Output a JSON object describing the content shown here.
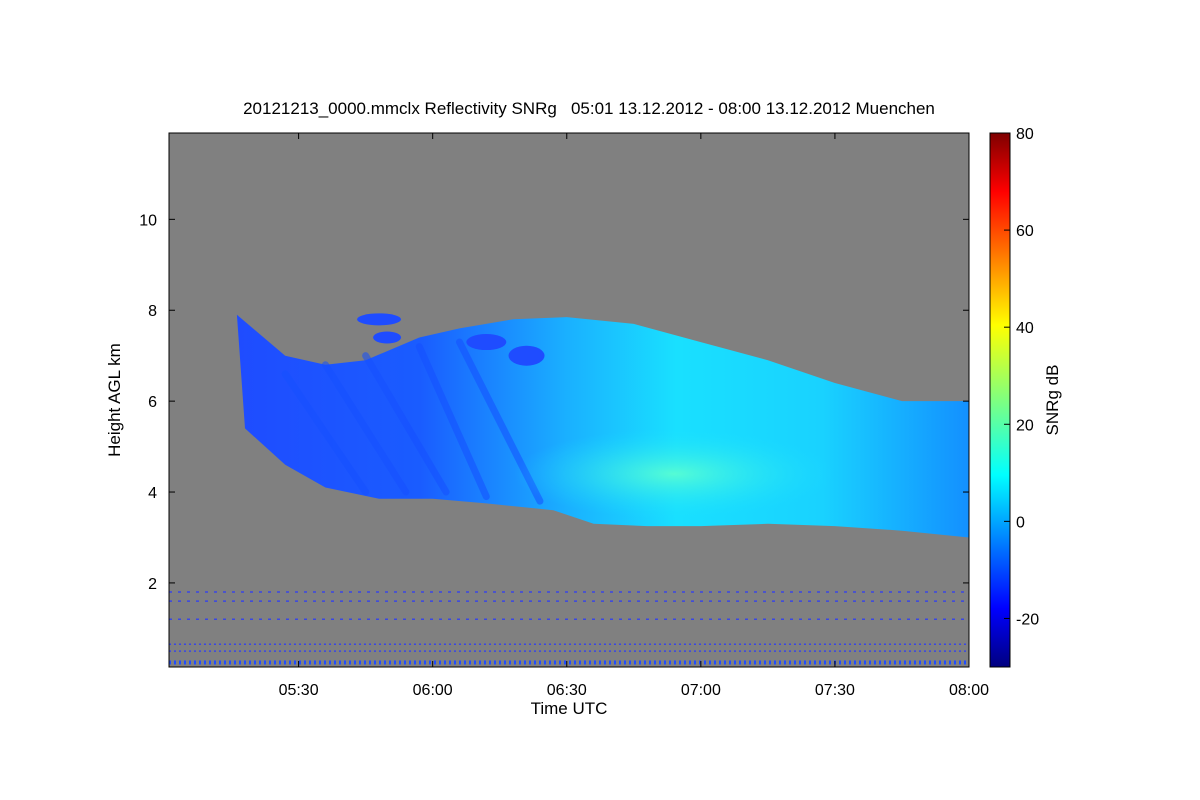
{
  "chart_data": {
    "type": "heatmap",
    "title": "20121213_0000.mmclx Reflectivity SNRg   05:01 13.12.2012 - 08:00 13.12.2012 Muenchen",
    "xlabel": "Time UTC",
    "ylabel": "Height AGL km",
    "x_unit": "UTC hour",
    "xlim": [
      5.0167,
      8.0
    ],
    "ylim": [
      0.15,
      11.9
    ],
    "xticks": [
      {
        "value": 5.5,
        "label": "05:30"
      },
      {
        "value": 6.0,
        "label": "06:00"
      },
      {
        "value": 6.5,
        "label": "06:30"
      },
      {
        "value": 7.0,
        "label": "07:00"
      },
      {
        "value": 7.5,
        "label": "07:30"
      },
      {
        "value": 8.0,
        "label": "08:00"
      }
    ],
    "yticks": [
      {
        "value": 2,
        "label": "2"
      },
      {
        "value": 4,
        "label": "4"
      },
      {
        "value": 6,
        "label": "6"
      },
      {
        "value": 8,
        "label": "8"
      },
      {
        "value": 10,
        "label": "10"
      }
    ],
    "background_color": "#808080",
    "colorbar": {
      "label": "SNRg dB",
      "range": [
        -30,
        80
      ],
      "colormap": "jet",
      "ticks": [
        {
          "value": -20,
          "label": "-20"
        },
        {
          "value": 0,
          "label": "0"
        },
        {
          "value": 20,
          "label": "20"
        },
        {
          "value": 40,
          "label": "40"
        },
        {
          "value": 60,
          "label": "60"
        },
        {
          "value": 80,
          "label": "80"
        }
      ]
    },
    "cloud_layer": {
      "value_range_db": [
        -22,
        10
      ],
      "core_value_db": 7,
      "top_km": [
        [
          5.27,
          7.9
        ],
        [
          5.45,
          7.0
        ],
        [
          5.6,
          6.8
        ],
        [
          5.75,
          6.9
        ],
        [
          5.95,
          7.4
        ],
        [
          6.1,
          7.6
        ],
        [
          6.3,
          7.8
        ],
        [
          6.5,
          7.85
        ],
        [
          6.75,
          7.7
        ],
        [
          7.0,
          7.3
        ],
        [
          7.25,
          6.9
        ],
        [
          7.5,
          6.4
        ],
        [
          7.75,
          6.0
        ],
        [
          8.0,
          6.0
        ]
      ],
      "base_km": [
        [
          5.3,
          5.4
        ],
        [
          5.45,
          4.6
        ],
        [
          5.6,
          4.1
        ],
        [
          5.8,
          3.85
        ],
        [
          6.0,
          3.85
        ],
        [
          6.2,
          3.75
        ],
        [
          6.45,
          3.6
        ],
        [
          6.6,
          3.3
        ],
        [
          6.8,
          3.25
        ],
        [
          7.0,
          3.25
        ],
        [
          7.25,
          3.3
        ],
        [
          7.5,
          3.25
        ],
        [
          7.75,
          3.15
        ],
        [
          8.0,
          3.0
        ]
      ]
    },
    "clutter_lines_km": [
      1.8,
      1.6,
      1.2,
      0.65,
      0.5,
      0.25
    ]
  }
}
